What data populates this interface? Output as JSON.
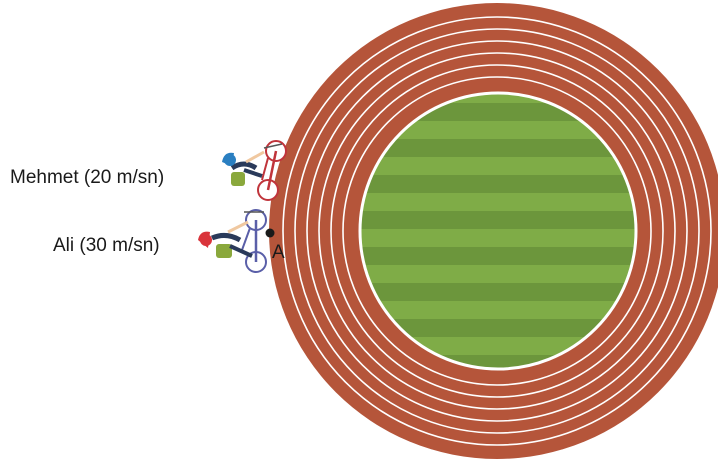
{
  "riders": {
    "mehmet": {
      "label": "Mehmet (20 m/sn)",
      "helmet_color": "#2a7fc1"
    },
    "ali": {
      "label": "Ali (30 m/sn)",
      "helmet_color": "#d9343b"
    }
  },
  "point": {
    "label": "A"
  },
  "colors": {
    "track": "#b5553a",
    "lane_line": "#ffffff",
    "field_light": "#7fac47",
    "field_dark": "#6c963c",
    "mehmet_bike": "#c0343b",
    "ali_bike": "#5a5fa8"
  }
}
